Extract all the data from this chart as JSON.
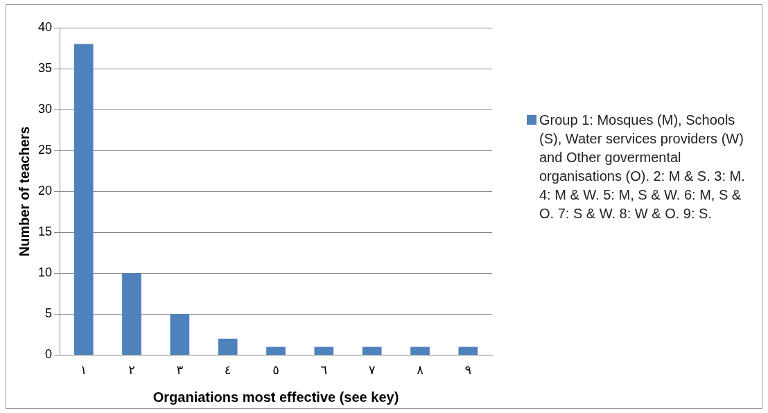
{
  "chart_data": {
    "type": "bar",
    "xlabel": "Organiations most effective (see key)",
    "ylabel": "Number of teachers",
    "categories": [
      "١",
      "٢",
      "٣",
      "٤",
      "٥",
      "٦",
      "٧",
      "٨",
      "٩"
    ],
    "series": [
      {
        "name": "Group 1: Mosques (M), Schools (S), Water services providers (W) and Other govermental organisations (O). 2: M & S. 3: M. 4: M & W. 5: M, S & W. 6: M, S & O. 7: S & W. 8: W & O. 9: S.",
        "color": "#4f81bd",
        "values": [
          38,
          10,
          5,
          2,
          1,
          1,
          1,
          1,
          1
        ]
      }
    ],
    "ylim": [
      0,
      40
    ],
    "yticks": [
      0,
      5,
      10,
      15,
      20,
      25,
      30,
      35,
      40
    ],
    "grid": "y",
    "legend": "right"
  }
}
